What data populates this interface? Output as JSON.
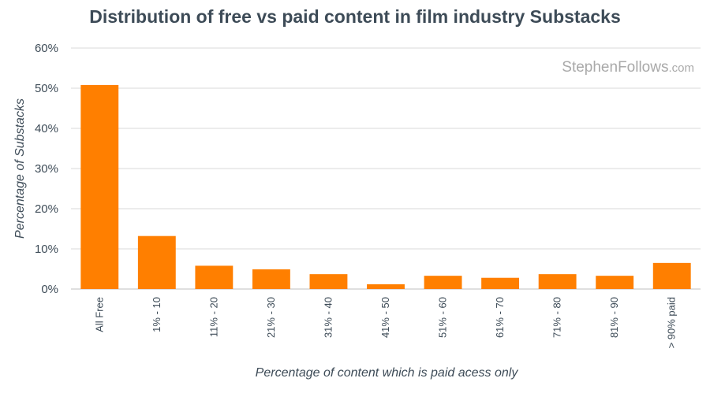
{
  "watermark": {
    "main": "StephenFollows",
    "suffix": ".com"
  },
  "chart_data": {
    "type": "bar",
    "title": "Distribution of free vs paid content in film industry Substacks",
    "xlabel": "Percentage of content which is paid acess only",
    "ylabel": "Percentage of Substacks",
    "categories": [
      "All Free",
      "1% - 10",
      "11% - 20",
      "21% - 30",
      "31% - 40",
      "41% - 50",
      "51% - 60",
      "61% - 70",
      "71% - 80",
      "81% - 90",
      "> 90% paid"
    ],
    "values": [
      50.8,
      13.2,
      5.8,
      4.9,
      3.7,
      1.2,
      3.3,
      2.8,
      3.7,
      3.3,
      6.5
    ],
    "ylim": [
      0,
      60
    ],
    "yticks": [
      "0%",
      "10%",
      "20%",
      "30%",
      "40%",
      "50%",
      "60%"
    ],
    "grid": true,
    "colors": {
      "bar": "#ff7f00",
      "grid": "#d9d9d9",
      "text": "#3d4b57"
    }
  }
}
